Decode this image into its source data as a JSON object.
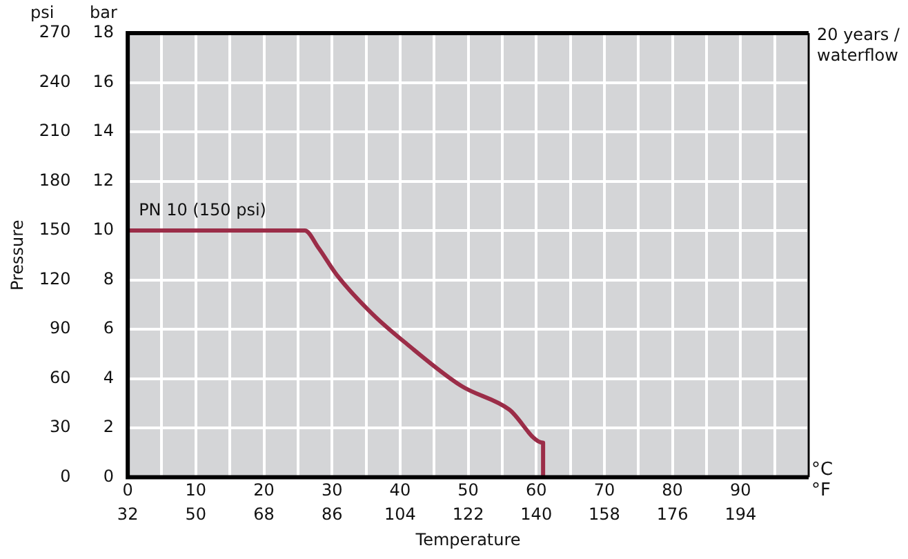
{
  "chart_data": {
    "type": "line",
    "xlabel": "Temperature",
    "y2label": "Pressure",
    "series": [
      {
        "name": "PN 10 (150 psi)",
        "color": "#9b2d48",
        "x": [
          0,
          26,
          28,
          30.7,
          36,
          41,
          49,
          56,
          61,
          61
        ],
        "values": [
          10,
          10,
          9.3,
          8.2,
          6.6,
          5.4,
          3.7,
          2.75,
          1.4,
          0
        ]
      }
    ],
    "xlim": [
      0,
      100
    ],
    "xticks": [
      0,
      {
        "value": 5,
        "label": null
      },
      10,
      {
        "value": 15,
        "label": null
      },
      20,
      {
        "value": 25,
        "label": null
      },
      30,
      {
        "value": 35,
        "label": null
      },
      40,
      {
        "value": 45,
        "label": null
      },
      50,
      {
        "value": 55,
        "label": null
      },
      60,
      {
        "value": 65,
        "label": null
      },
      70,
      {
        "value": 75,
        "label": null
      },
      80,
      {
        "value": 85,
        "label": null
      },
      90,
      {
        "value": 95,
        "label": null
      },
      {
        "value": 100,
        "label": null
      }
    ],
    "x2lim": [
      32,
      212
    ],
    "x2ticks": [
      32,
      50,
      68,
      86,
      104,
      122,
      140,
      158,
      176,
      194
    ],
    "ylim": [
      0,
      18
    ],
    "yticks": [
      0,
      2,
      4,
      6,
      8,
      10,
      12,
      14,
      16,
      18
    ],
    "y2lim": [
      0,
      270
    ],
    "y2ticks": [
      0,
      30,
      60,
      90,
      120,
      150,
      180,
      210,
      240,
      270
    ],
    "annotations": [
      "20 years / waterflow",
      "°C",
      "°F",
      "psi",
      "bar"
    ],
    "grid": true,
    "marker": "none",
    "line_style": "solid"
  }
}
